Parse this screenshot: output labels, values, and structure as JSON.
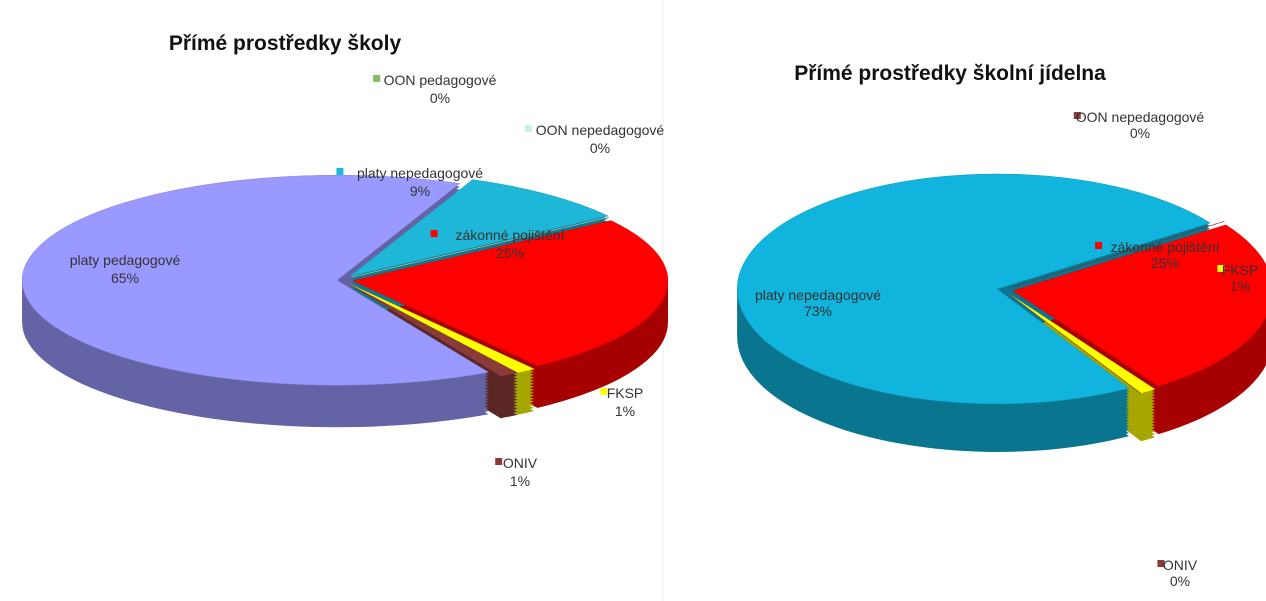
{
  "chart_data": [
    {
      "type": "pie",
      "title": "Přímé prostředky školy",
      "categories": [
        "zákonné pojištění",
        "FKSP",
        "ONIV",
        "platy pedagogové",
        "platy nepedagogové",
        "OON pedagogové",
        "OON nepedagogové"
      ],
      "values": [
        25,
        1,
        1,
        65,
        9,
        0,
        0
      ],
      "value_labels": [
        "25%",
        "1%",
        "1%",
        "65%",
        "9%",
        "0%",
        "0%"
      ],
      "colors": [
        "#ff0000",
        "#ffff00",
        "#8b3a3a",
        "#9999ff",
        "#1fb7d8",
        "#7fbf5f",
        "#c8f0f0"
      ]
    },
    {
      "type": "pie",
      "title": "Přímé prostředky školní jídelna",
      "categories": [
        "zákonné pojištění",
        "FKSP",
        "ONIV",
        "platy nepedagogové",
        "OON nepedagogové"
      ],
      "values": [
        25,
        1,
        0,
        73,
        0
      ],
      "value_labels": [
        "25%",
        "1%",
        "0%",
        "73%",
        "0%"
      ],
      "colors": [
        "#ff0000",
        "#ffff00",
        "#8b3a3a",
        "#10b4dc",
        "#8b3a3a"
      ]
    }
  ]
}
